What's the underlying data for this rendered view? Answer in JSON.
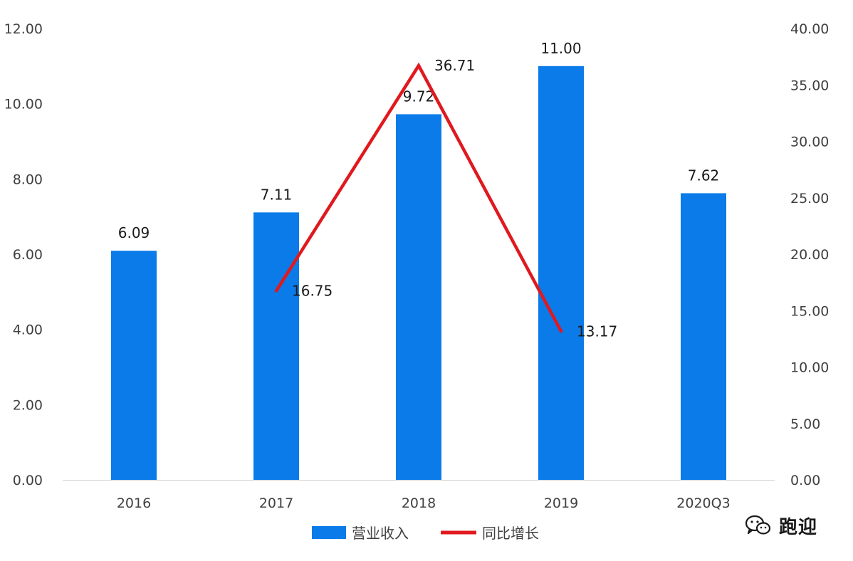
{
  "chart_data": {
    "type": "bar",
    "title": "",
    "categories": [
      "2016",
      "2017",
      "2018",
      "2019",
      "2020Q3"
    ],
    "series": [
      {
        "name": "营业收入",
        "type": "bar",
        "axis": "left",
        "color": "#0a7be8",
        "values": [
          6.09,
          7.11,
          9.72,
          11.0,
          7.62
        ],
        "labels": [
          "6.09",
          "7.11",
          "9.72",
          "11.00",
          "7.62"
        ]
      },
      {
        "name": "同比增长",
        "type": "line",
        "axis": "right",
        "color": "#e0191e",
        "values": [
          null,
          16.75,
          36.71,
          13.17,
          null
        ],
        "labels": [
          "",
          "16.75",
          "36.71",
          "13.17",
          ""
        ]
      }
    ],
    "y_left": {
      "min": 0,
      "max": 12,
      "step": 2,
      "tick_labels": [
        "0.00",
        "2.00",
        "4.00",
        "6.00",
        "8.00",
        "10.00",
        "12.00"
      ]
    },
    "y_right": {
      "min": 0,
      "max": 40,
      "step": 5,
      "tick_labels": [
        "0.00",
        "5.00",
        "10.00",
        "15.00",
        "20.00",
        "25.00",
        "30.00",
        "35.00",
        "40.00"
      ]
    },
    "grid": false,
    "legend_position": "bottom"
  },
  "watermark": {
    "text": "跑迎",
    "icon": "wechat-icon"
  }
}
